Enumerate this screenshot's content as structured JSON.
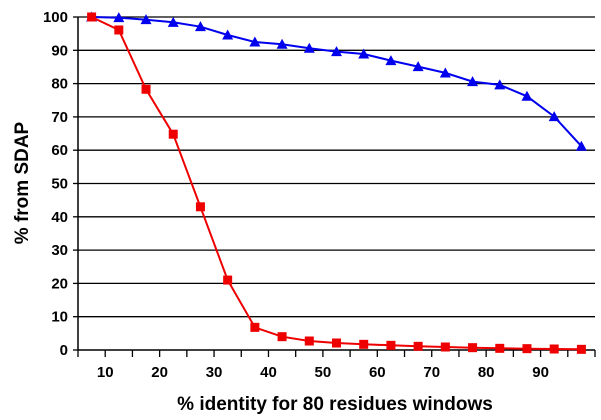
{
  "chart_data": {
    "type": "line",
    "xlabel": "% identity for 80 residues windows",
    "ylabel": "% from SDAP",
    "xlim": [
      5,
      100
    ],
    "ylim": [
      0,
      100
    ],
    "xticks": [
      10,
      20,
      30,
      40,
      50,
      60,
      70,
      80,
      90
    ],
    "yticks": [
      0,
      10,
      20,
      30,
      40,
      50,
      60,
      70,
      80,
      90,
      100
    ],
    "grid": "horizontal",
    "legend": "none",
    "series": [
      {
        "color": "#0000ee",
        "marker": "triangle",
        "points": [
          [
            7.5,
            100
          ],
          [
            12.5,
            99.8
          ],
          [
            17.5,
            99.2
          ],
          [
            22.5,
            98.4
          ],
          [
            27.5,
            97.1
          ],
          [
            32.5,
            94.6
          ],
          [
            37.5,
            92.5
          ],
          [
            42.5,
            91.8
          ],
          [
            47.5,
            90.6
          ],
          [
            52.5,
            89.6
          ],
          [
            57.5,
            88.9
          ],
          [
            62.5,
            86.9
          ],
          [
            67.5,
            85.1
          ],
          [
            72.5,
            83.2
          ],
          [
            77.5,
            80.6
          ],
          [
            82.5,
            79.6
          ],
          [
            87.5,
            76.2
          ],
          [
            92.5,
            70.1
          ],
          [
            97.5,
            61.2
          ]
        ]
      },
      {
        "color": "#ee0000",
        "marker": "square",
        "points": [
          [
            7.5,
            100
          ],
          [
            12.5,
            96.1
          ],
          [
            17.5,
            78.3
          ],
          [
            22.5,
            64.8
          ],
          [
            27.5,
            43.0
          ],
          [
            32.5,
            21.0
          ],
          [
            37.5,
            6.8
          ],
          [
            42.5,
            4.0
          ],
          [
            47.5,
            2.7
          ],
          [
            52.5,
            2.1
          ],
          [
            57.5,
            1.7
          ],
          [
            62.5,
            1.4
          ],
          [
            67.5,
            1.1
          ],
          [
            72.5,
            0.9
          ],
          [
            77.5,
            0.7
          ],
          [
            82.5,
            0.5
          ],
          [
            87.5,
            0.4
          ],
          [
            92.5,
            0.3
          ],
          [
            97.5,
            0.2
          ]
        ]
      }
    ]
  }
}
